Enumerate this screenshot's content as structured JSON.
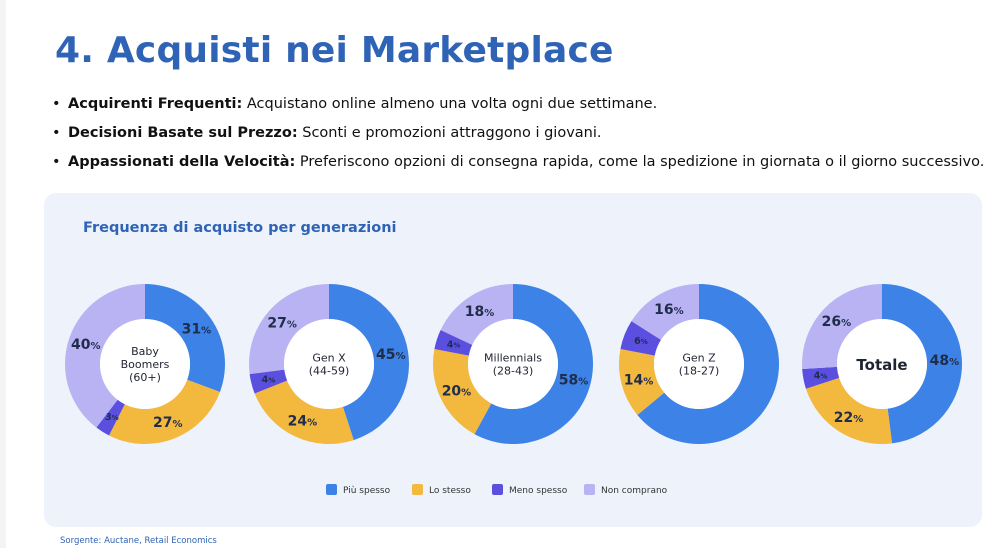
{
  "title": "4. Acquisti nei Marketplace",
  "bullets": [
    {
      "bold": "Acquirenti Frequenti:",
      "text": " Acquistano online almeno una volta ogni due settimane."
    },
    {
      "bold": "Decisioni Basate sul Prezzo:",
      "text": " Sconti e promozioni attraggono i giovani."
    },
    {
      "bold": "Appassionati della Velocità:",
      "text": " Preferiscono opzioni di consegna rapida, come la spedizione in giornata o il giorno successivo."
    }
  ],
  "colors": {
    "piu_spesso": "#3d82e6",
    "lo_stesso": "#f3b83e",
    "meno_spesso": "#5b4fe0",
    "non_comprano": "#b9b2f3"
  },
  "chart_data": {
    "type": "pie",
    "subtype": "donut",
    "title": "Frequenza di acquisto per generazioni",
    "categories": [
      "Più spesso",
      "Lo stesso",
      "Meno spesso",
      "Non comprano"
    ],
    "legend_position": "bottom",
    "donuts": [
      {
        "name": "Baby Boomers (60+)",
        "center_lines": [
          "Baby",
          "Boomers",
          "(60+)"
        ],
        "values": [
          31,
          27,
          3,
          40
        ]
      },
      {
        "name": "Gen X (44-59)",
        "center_lines": [
          "Gen X",
          "(44-59)"
        ],
        "values": [
          45,
          24,
          4,
          27
        ]
      },
      {
        "name": "Millennials (28-43)",
        "center_lines": [
          "Millennials",
          "(28-43)"
        ],
        "values": [
          58,
          20,
          4,
          18
        ]
      },
      {
        "name": "Gen Z (18-27)",
        "center_lines": [
          "Gen Z",
          "(18-27)"
        ],
        "values": [
          64,
          14,
          6,
          16
        ],
        "labels_shown": [
          false,
          true,
          true,
          true
        ]
      },
      {
        "name": "Totale",
        "center_lines": [
          "Totale"
        ],
        "values": [
          48,
          22,
          4,
          26
        ]
      }
    ]
  },
  "source": "Sorgente: Auctane, Retail Economics"
}
